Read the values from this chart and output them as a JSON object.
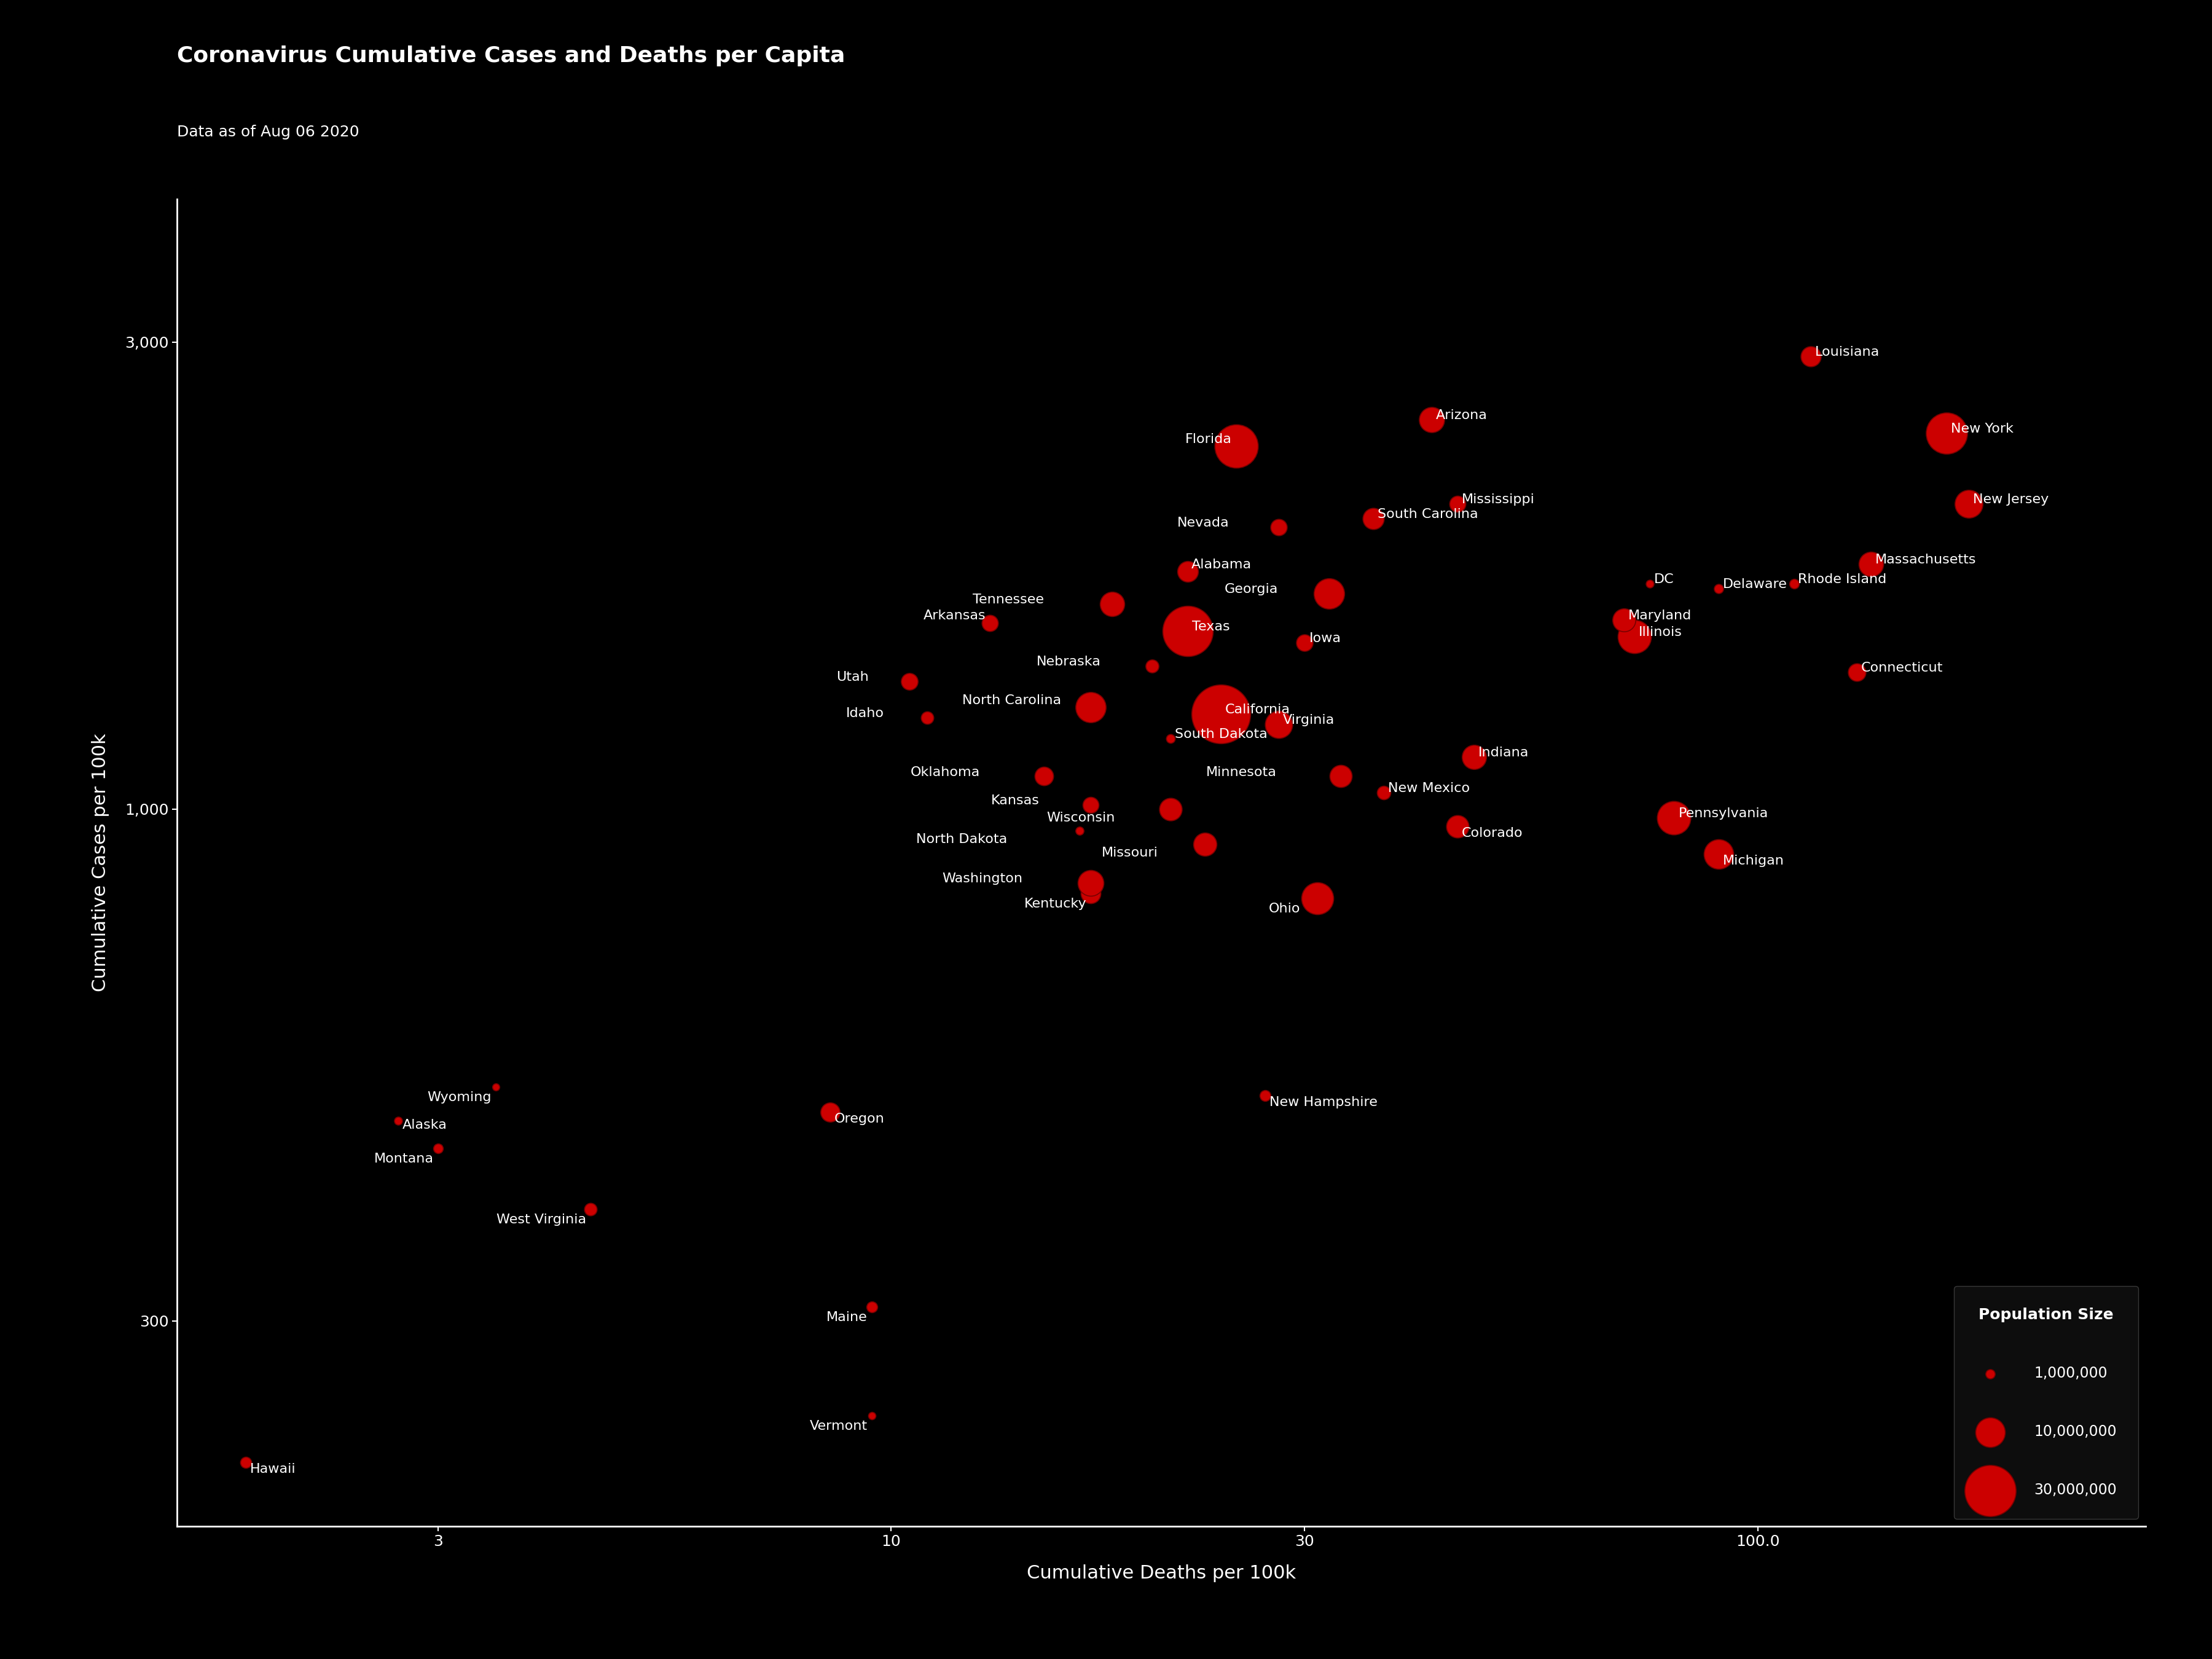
{
  "title": "Coronavirus Cumulative Cases and Deaths per Capita",
  "subtitle": "Data as of Aug 06 2020",
  "xlabel": "Cumulative Deaths per 100k",
  "ylabel": "Cumulative Cases per 100k",
  "bg_color": "#000000",
  "text_color": "#ffffff",
  "dot_color": "#cc0000",
  "dot_edge_color": "#7a0000",
  "states": [
    {
      "name": "Alabama",
      "deaths": 22.0,
      "cases": 1750,
      "pop": 4903185
    },
    {
      "name": "Alaska",
      "deaths": 2.7,
      "cases": 480,
      "pop": 731545
    },
    {
      "name": "Arizona",
      "deaths": 42.0,
      "cases": 2500,
      "pop": 7278717
    },
    {
      "name": "Arkansas",
      "deaths": 13.0,
      "cases": 1550,
      "pop": 3017804
    },
    {
      "name": "California",
      "deaths": 24.0,
      "cases": 1250,
      "pop": 39512223
    },
    {
      "name": "Colorado",
      "deaths": 45.0,
      "cases": 960,
      "pop": 5758736
    },
    {
      "name": "Connecticut",
      "deaths": 130.0,
      "cases": 1380,
      "pop": 3565287
    },
    {
      "name": "DC",
      "deaths": 75.0,
      "cases": 1700,
      "pop": 705749
    },
    {
      "name": "Delaware",
      "deaths": 90.0,
      "cases": 1680,
      "pop": 973764
    },
    {
      "name": "Florida",
      "deaths": 25.0,
      "cases": 2350,
      "pop": 21477737
    },
    {
      "name": "Georgia",
      "deaths": 32.0,
      "cases": 1660,
      "pop": 10617423
    },
    {
      "name": "Hawaii",
      "deaths": 1.8,
      "cases": 215,
      "pop": 1415872
    },
    {
      "name": "Idaho",
      "deaths": 11.0,
      "cases": 1240,
      "pop": 1787065
    },
    {
      "name": "Illinois",
      "deaths": 72.0,
      "cases": 1500,
      "pop": 12671821
    },
    {
      "name": "Indiana",
      "deaths": 47.0,
      "cases": 1130,
      "pop": 6732219
    },
    {
      "name": "Iowa",
      "deaths": 30.0,
      "cases": 1480,
      "pop": 3155070
    },
    {
      "name": "Kansas",
      "deaths": 17.0,
      "cases": 1010,
      "pop": 2913314
    },
    {
      "name": "Kentucky",
      "deaths": 17.0,
      "cases": 820,
      "pop": 4467673
    },
    {
      "name": "Louisiana",
      "deaths": 115.0,
      "cases": 2900,
      "pop": 4648794
    },
    {
      "name": "Maine",
      "deaths": 9.5,
      "cases": 310,
      "pop": 1344212
    },
    {
      "name": "Maryland",
      "deaths": 70.0,
      "cases": 1560,
      "pop": 6045680
    },
    {
      "name": "Massachusetts",
      "deaths": 135.0,
      "cases": 1780,
      "pop": 6892503
    },
    {
      "name": "Michigan",
      "deaths": 90.0,
      "cases": 900,
      "pop": 9986857
    },
    {
      "name": "Minnesota",
      "deaths": 33.0,
      "cases": 1080,
      "pop": 5639632
    },
    {
      "name": "Mississippi",
      "deaths": 45.0,
      "cases": 2050,
      "pop": 2976149
    },
    {
      "name": "Missouri",
      "deaths": 23.0,
      "cases": 920,
      "pop": 6137428
    },
    {
      "name": "Montana",
      "deaths": 3.0,
      "cases": 450,
      "pop": 1068778
    },
    {
      "name": "Nebraska",
      "deaths": 20.0,
      "cases": 1400,
      "pop": 1934408
    },
    {
      "name": "Nevada",
      "deaths": 28.0,
      "cases": 1940,
      "pop": 3080156
    },
    {
      "name": "New Hampshire",
      "deaths": 27.0,
      "cases": 510,
      "pop": 1359711
    },
    {
      "name": "New Jersey",
      "deaths": 175.0,
      "cases": 2050,
      "pop": 8882190
    },
    {
      "name": "New Mexico",
      "deaths": 37.0,
      "cases": 1040,
      "pop": 2096829
    },
    {
      "name": "New York",
      "deaths": 165.0,
      "cases": 2420,
      "pop": 19453561
    },
    {
      "name": "North Carolina",
      "deaths": 17.0,
      "cases": 1270,
      "pop": 10488084
    },
    {
      "name": "North Dakota",
      "deaths": 16.5,
      "cases": 950,
      "pop": 762062
    },
    {
      "name": "Ohio",
      "deaths": 31.0,
      "cases": 810,
      "pop": 11689100
    },
    {
      "name": "Oklahoma",
      "deaths": 15.0,
      "cases": 1080,
      "pop": 3956971
    },
    {
      "name": "Oregon",
      "deaths": 8.5,
      "cases": 490,
      "pop": 4217737
    },
    {
      "name": "Pennsylvania",
      "deaths": 80.0,
      "cases": 980,
      "pop": 12801989
    },
    {
      "name": "Rhode Island",
      "deaths": 110.0,
      "cases": 1700,
      "pop": 1059361
    },
    {
      "name": "South Carolina",
      "deaths": 36.0,
      "cases": 1980,
      "pop": 5148714
    },
    {
      "name": "South Dakota",
      "deaths": 21.0,
      "cases": 1180,
      "pop": 884659
    },
    {
      "name": "Tennessee",
      "deaths": 18.0,
      "cases": 1620,
      "pop": 6829174
    },
    {
      "name": "Texas",
      "deaths": 22.0,
      "cases": 1520,
      "pop": 28995881
    },
    {
      "name": "Utah",
      "deaths": 10.5,
      "cases": 1350,
      "pop": 3205958
    },
    {
      "name": "Vermont",
      "deaths": 9.5,
      "cases": 240,
      "pop": 623989
    },
    {
      "name": "Virginia",
      "deaths": 28.0,
      "cases": 1220,
      "pop": 8535519
    },
    {
      "name": "Washington",
      "deaths": 17.0,
      "cases": 840,
      "pop": 7614893
    },
    {
      "name": "West Virginia",
      "deaths": 4.5,
      "cases": 390,
      "pop": 1792147
    },
    {
      "name": "Wisconsin",
      "deaths": 21.0,
      "cases": 1000,
      "pop": 5822434
    },
    {
      "name": "Wyoming",
      "deaths": 3.5,
      "cases": 520,
      "pop": 578759
    }
  ],
  "legend_sizes": [
    1000000,
    10000000,
    30000000
  ],
  "legend_labels": [
    "1,000,000",
    "10,000,000",
    "30,000,000"
  ],
  "xlim": [
    1.5,
    280
  ],
  "ylim": [
    185,
    4200
  ],
  "xticks": [
    3,
    10,
    30,
    100
  ],
  "yticks": [
    300,
    1000,
    3000
  ],
  "xtick_labels": [
    "3",
    "10",
    "30",
    "100.0"
  ],
  "ytick_labels": [
    "300",
    "1,000",
    "3,000"
  ],
  "title_fontsize": 26,
  "subtitle_fontsize": 18,
  "label_fontsize": 16,
  "tick_fontsize": 18,
  "axis_label_fontsize": 22,
  "pop_scale": 0.00012,
  "legend_title": "Population Size"
}
